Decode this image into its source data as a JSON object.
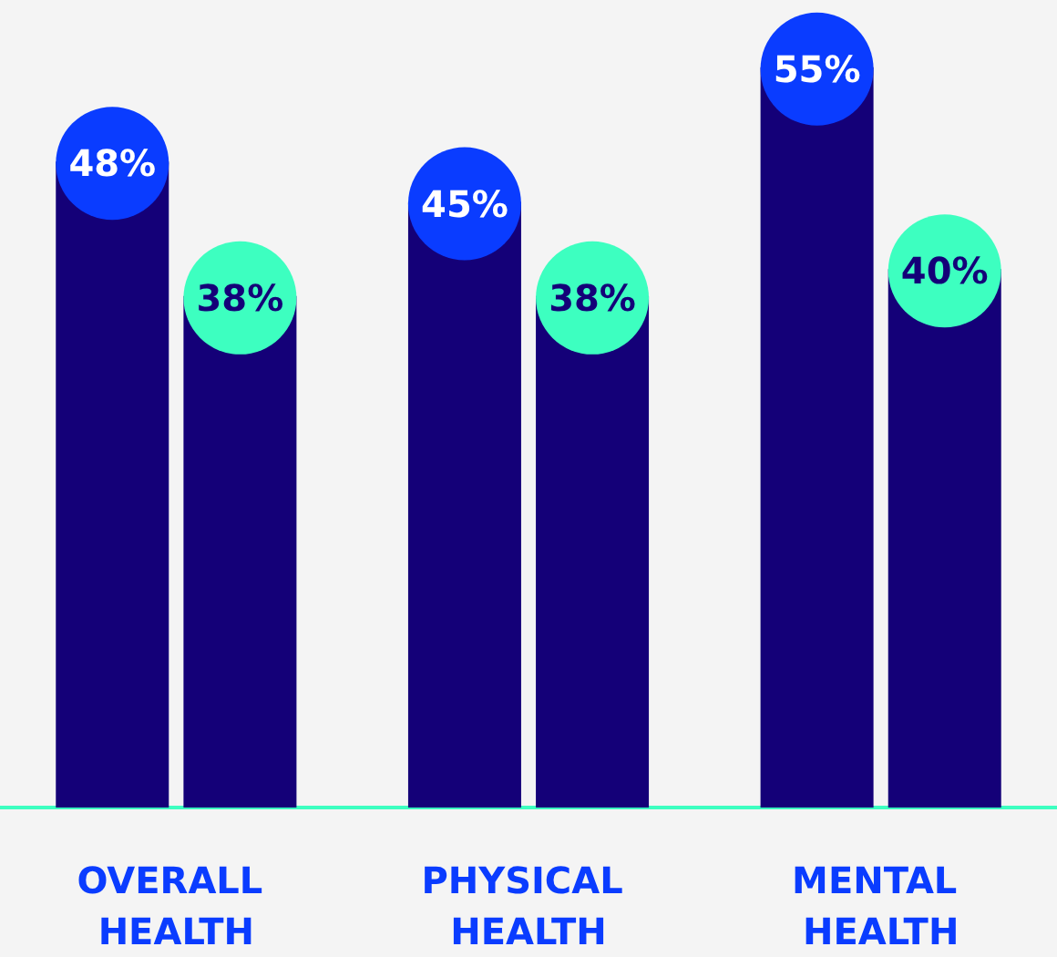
{
  "chart_data": {
    "type": "bar",
    "categories": [
      "OVERALL HEALTH",
      "PHYSICAL HEALTH",
      "MENTAL HEALTH"
    ],
    "series": [
      {
        "color": "#140078",
        "values": [
          48,
          45,
          55
        ],
        "value_labels": [
          "48%",
          "45%",
          "55%"
        ]
      },
      {
        "color": "#140078",
        "values": [
          38,
          38,
          40
        ],
        "value_labels": [
          "38%",
          "38%",
          "40%"
        ]
      }
    ]
  }
}
